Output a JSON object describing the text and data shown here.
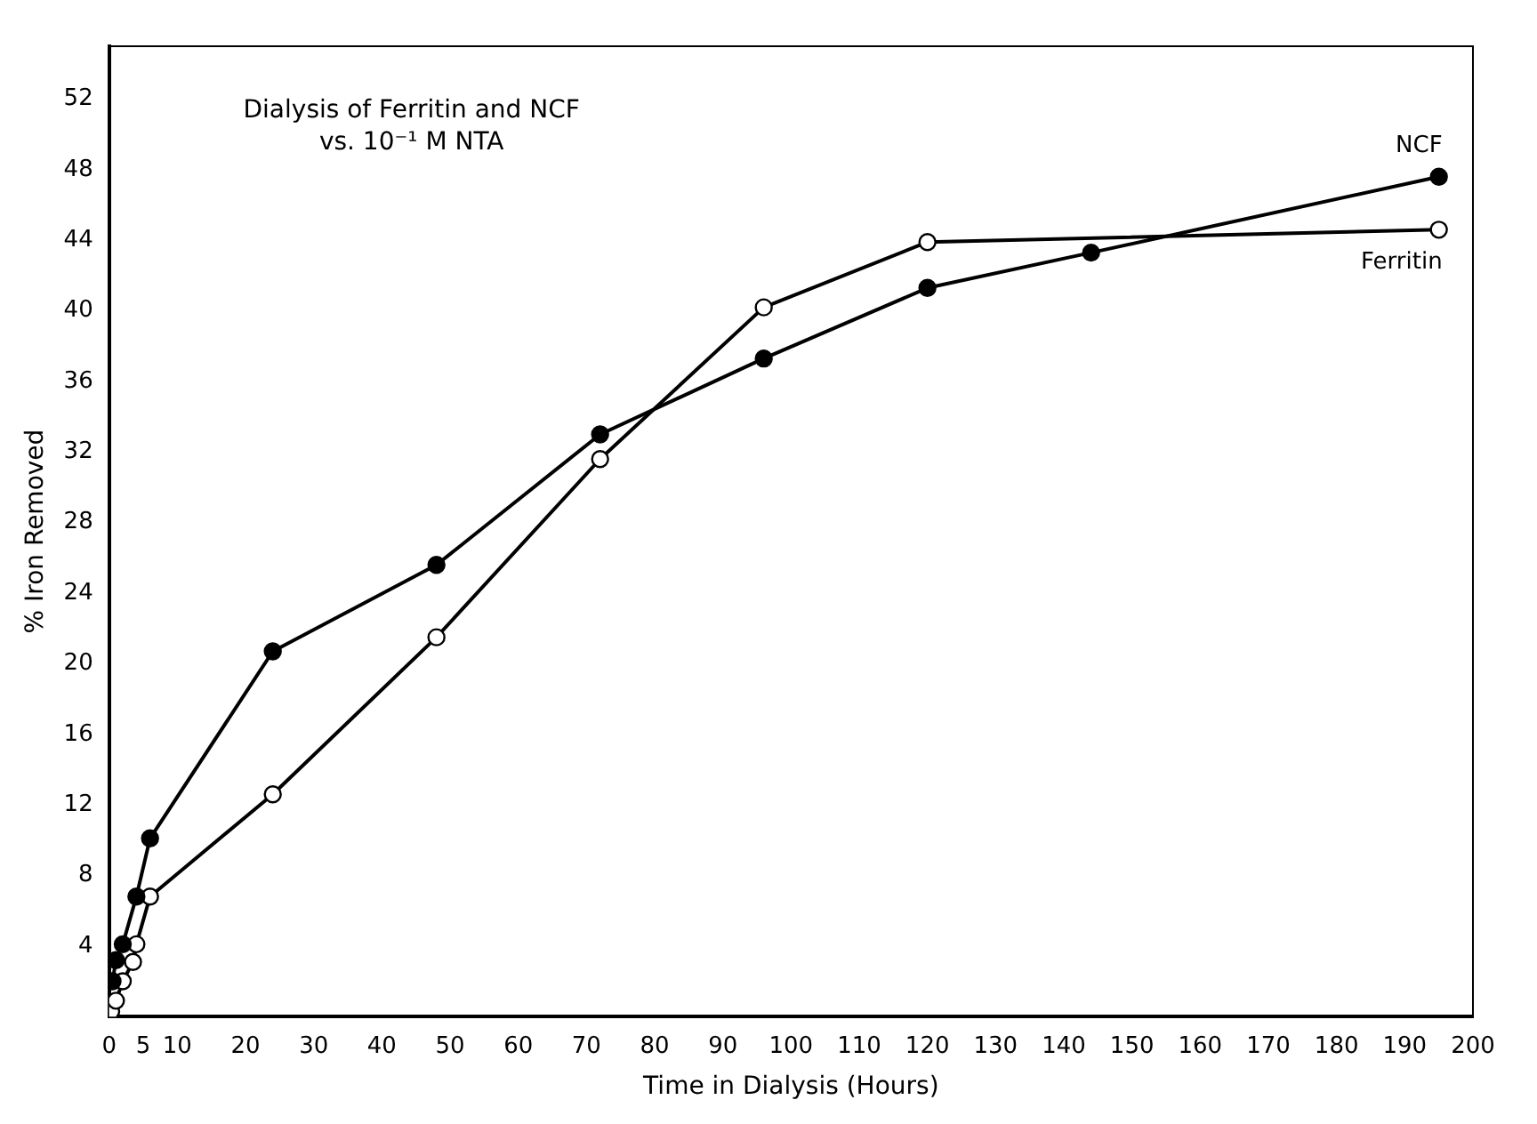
{
  "chart_data": {
    "type": "line",
    "title": "Dialysis of Ferritin and NCF\nvs. 10⁻¹ M NTA",
    "xlabel": "Time in Dialysis (Hours)",
    "ylabel": "% Iron Removed",
    "xlim": [
      0,
      200
    ],
    "xticks": [
      0,
      5,
      10,
      20,
      30,
      40,
      50,
      60,
      70,
      80,
      90,
      100,
      110,
      120,
      130,
      140,
      150,
      160,
      170,
      180,
      190,
      200
    ],
    "ylim": [
      0,
      55
    ],
    "yticks": [
      4,
      8,
      12,
      16,
      20,
      24,
      28,
      32,
      36,
      40,
      44,
      48,
      52
    ],
    "grid": false,
    "legend": false,
    "marker": "circle",
    "line_style": "solid",
    "series": [
      {
        "name": "NCF",
        "color": "#000000",
        "x": [
          0.5,
          1,
          2,
          4,
          6,
          24,
          48,
          72,
          96,
          120,
          144,
          195
        ],
        "values": [
          2,
          3.2,
          4.1,
          6.8,
          10.1,
          20.7,
          25.6,
          33,
          37.3,
          41.3,
          43.3,
          47.6
        ]
      },
      {
        "name": "Ferritin",
        "color": "#000000",
        "x": [
          0.3,
          1,
          2,
          3.5,
          4,
          6,
          24,
          48,
          72,
          96,
          120,
          195
        ],
        "values": [
          0.3,
          0.9,
          2,
          3.1,
          4.1,
          6.8,
          12.6,
          21.5,
          31.6,
          40.2,
          43.9,
          44.6
        ]
      }
    ]
  }
}
